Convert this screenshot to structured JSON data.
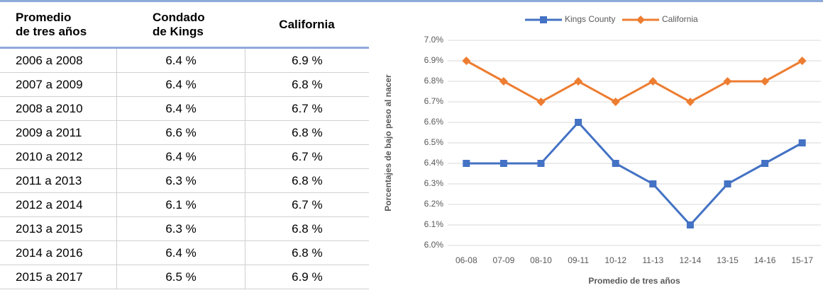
{
  "table": {
    "header": [
      [
        "Promedio",
        "de tres años"
      ],
      [
        "Condado",
        "de Kings"
      ],
      [
        "California"
      ]
    ],
    "rows": [
      [
        "2006 a 2008",
        "6.4 %",
        "6.9 %"
      ],
      [
        "2007 a 2009",
        "6.4 %",
        "6.8 %"
      ],
      [
        "2008 a 2010",
        "6.4 %",
        "6.7 %"
      ],
      [
        "2009 a 2011",
        "6.6 %",
        "6.8 %"
      ],
      [
        "2010 a 2012",
        "6.4 %",
        "6.7 %"
      ],
      [
        "2011 a 2013",
        "6.3 %",
        "6.8 %"
      ],
      [
        "2012 a 2014",
        "6.1 %",
        "6.7 %"
      ],
      [
        "2013 a 2015",
        "6.3 %",
        "6.8 %"
      ],
      [
        "2014 a 2016",
        "6.4 %",
        "6.8 %"
      ],
      [
        "2015 a 2017",
        "6.5 %",
        "6.9 %"
      ]
    ]
  },
  "chart_data": {
    "type": "line",
    "x_label": "Promedio de tres años",
    "y_label": "Porcentajes de bajo peso al nacer",
    "categories": [
      "06-08",
      "07-09",
      "08-10",
      "09-11",
      "10-12",
      "11-13",
      "12-14",
      "13-15",
      "14-16",
      "15-17"
    ],
    "series": [
      {
        "name": "Kings County",
        "color": "#4472c4",
        "marker": "square",
        "values": [
          6.4,
          6.4,
          6.4,
          6.6,
          6.4,
          6.3,
          6.1,
          6.3,
          6.4,
          6.5
        ]
      },
      {
        "name": "California",
        "color": "#ed7d31",
        "marker": "diamond",
        "values": [
          6.9,
          6.8,
          6.7,
          6.8,
          6.7,
          6.8,
          6.7,
          6.8,
          6.8,
          6.9
        ]
      }
    ],
    "ylim": [
      6.0,
      7.0
    ],
    "yticks": [
      {
        "value": 6.0,
        "label": "6.0%"
      },
      {
        "value": 6.1,
        "label": "6.1%"
      },
      {
        "value": 6.2,
        "label": "6.2%"
      },
      {
        "value": 6.3,
        "label": "6.3%"
      },
      {
        "value": 6.4,
        "label": "6.4%"
      },
      {
        "value": 6.5,
        "label": "6.5%"
      },
      {
        "value": 6.6,
        "label": "6.6%"
      },
      {
        "value": 6.7,
        "label": "6.7%"
      },
      {
        "value": 6.8,
        "label": "6.8%"
      },
      {
        "value": 6.9,
        "label": "6.9%"
      },
      {
        "value": 7.0,
        "label": "7.0%"
      }
    ],
    "grid": true,
    "legend": "top"
  }
}
